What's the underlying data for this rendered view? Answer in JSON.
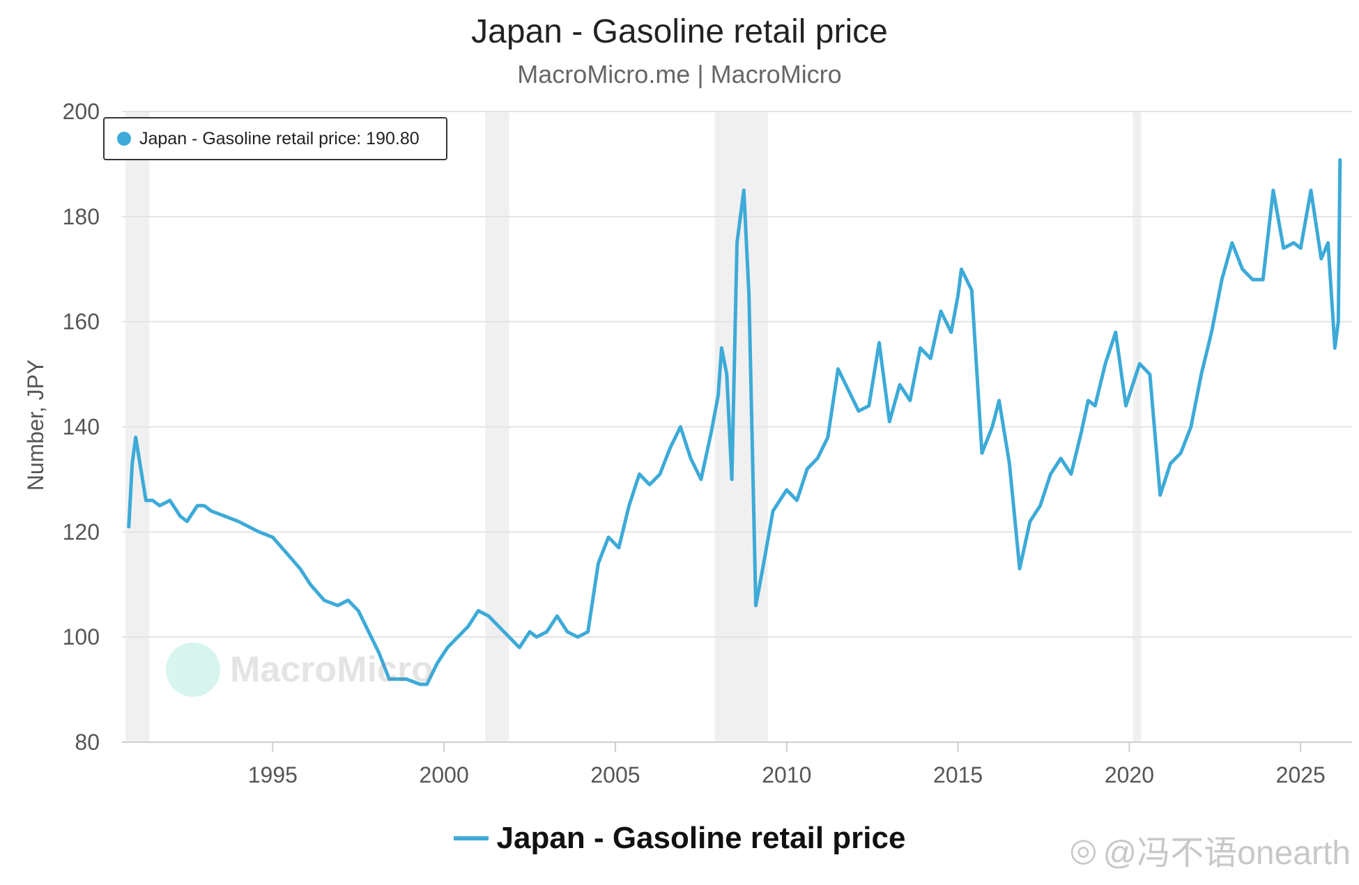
{
  "colors": {
    "series": "#3daad7",
    "recession_band": "#f0f0f0",
    "grid": "#e3e3e3"
  },
  "tooltip": {
    "text": "Japan - Gasoline retail price: 190.80"
  },
  "legend": {
    "label": "Japan - Gasoline retail price"
  },
  "watermark": {
    "text": "MacroMicro"
  },
  "credit": {
    "text": "@冯不语onearth",
    "icon": "weibo-icon"
  },
  "chart_data": {
    "type": "line",
    "title": "Japan - Gasoline retail price",
    "subtitle": "MacroMicro.me | MacroMicro",
    "ylabel": "Number, JPY",
    "xlabel": "",
    "xlim": [
      1990.6,
      2026.5
    ],
    "ylim": [
      80,
      200
    ],
    "x_ticks": [
      1995,
      2000,
      2005,
      2010,
      2015,
      2020,
      2025
    ],
    "y_ticks": [
      80,
      100,
      120,
      140,
      160,
      180,
      200
    ],
    "grid": true,
    "legend_position": "bottom-center",
    "recession_bands": [
      [
        1990.7,
        1991.4
      ],
      [
        2001.2,
        2001.9
      ],
      [
        2007.9,
        2009.45
      ],
      [
        2020.1,
        2020.35
      ]
    ],
    "series": [
      {
        "name": "Japan - Gasoline retail price",
        "x": [
          1990.8,
          1990.9,
          1991.0,
          1991.1,
          1991.3,
          1991.5,
          1991.7,
          1992.0,
          1992.3,
          1992.5,
          1992.8,
          1993.0,
          1993.2,
          1993.6,
          1994.0,
          1994.3,
          1994.6,
          1995.0,
          1995.4,
          1995.8,
          1996.1,
          1996.5,
          1996.9,
          1997.2,
          1997.5,
          1997.8,
          1998.1,
          1998.4,
          1998.9,
          1999.3,
          1999.5,
          1999.8,
          2000.1,
          2000.4,
          2000.7,
          2001.0,
          2001.3,
          2001.6,
          2001.9,
          2002.2,
          2002.5,
          2002.7,
          2003.0,
          2003.3,
          2003.6,
          2003.9,
          2004.2,
          2004.5,
          2004.8,
          2005.1,
          2005.4,
          2005.7,
          2006.0,
          2006.3,
          2006.6,
          2006.9,
          2007.2,
          2007.5,
          2007.8,
          2008.0,
          2008.1,
          2008.25,
          2008.4,
          2008.55,
          2008.75,
          2008.9,
          2009.1,
          2009.3,
          2009.6,
          2010.0,
          2010.3,
          2010.6,
          2010.9,
          2011.2,
          2011.5,
          2011.8,
          2012.1,
          2012.4,
          2012.7,
          2013.0,
          2013.3,
          2013.6,
          2013.9,
          2014.2,
          2014.5,
          2014.8,
          2015.0,
          2015.1,
          2015.4,
          2015.7,
          2016.0,
          2016.2,
          2016.5,
          2016.8,
          2017.1,
          2017.4,
          2017.7,
          2018.0,
          2018.3,
          2018.6,
          2018.8,
          2019.0,
          2019.3,
          2019.6,
          2019.9,
          2020.1,
          2020.3,
          2020.6,
          2020.9,
          2021.2,
          2021.5,
          2021.8,
          2022.1,
          2022.4,
          2022.7,
          2023.0,
          2023.3,
          2023.6,
          2023.9,
          2024.2,
          2024.5,
          2024.8,
          2025.0,
          2025.3,
          2025.6,
          2025.8,
          2026.0,
          2026.1,
          2026.15
        ],
        "values": [
          121,
          133,
          138,
          134,
          126,
          126,
          125,
          126,
          123,
          122,
          125,
          125,
          124,
          123,
          122,
          121,
          120,
          119,
          116,
          113,
          110,
          107,
          106,
          107,
          105,
          101,
          97,
          92,
          92,
          91,
          91,
          95,
          98,
          100,
          102,
          105,
          104,
          102,
          100,
          98,
          101,
          100,
          101,
          104,
          101,
          100,
          101,
          114,
          119,
          117,
          125,
          131,
          129,
          131,
          136,
          140,
          134,
          130,
          139,
          146,
          155,
          150,
          130,
          175,
          185,
          165,
          106,
          113,
          124,
          128,
          126,
          132,
          134,
          138,
          151,
          147,
          143,
          144,
          156,
          141,
          148,
          145,
          155,
          153,
          162,
          158,
          165,
          170,
          166,
          135,
          140,
          145,
          133,
          113,
          122,
          125,
          131,
          134,
          131,
          139,
          145,
          144,
          152,
          158,
          144,
          148,
          152,
          150,
          127,
          133,
          135,
          140,
          150,
          158,
          168,
          175,
          170,
          168,
          168,
          185,
          174,
          175,
          174,
          185,
          172,
          175,
          155,
          160,
          190.8
        ]
      }
    ]
  }
}
